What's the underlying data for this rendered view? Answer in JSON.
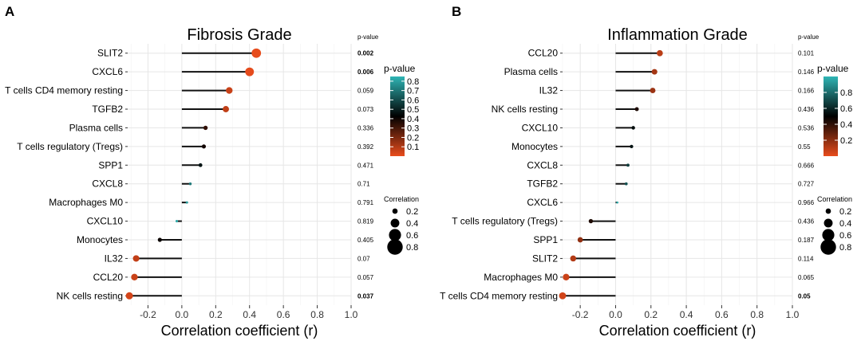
{
  "figure": {
    "panels": [
      {
        "letter": "A"
      },
      {
        "letter": "B"
      }
    ]
  },
  "legend": {
    "pvalue_title": "p-value",
    "correlation_title": "Correlation",
    "gradient_colors": [
      "#2fb5b5",
      "#000000",
      "#e84c1c"
    ],
    "size_labels": [
      "0.2",
      "0.4",
      "0.6",
      "0.8"
    ],
    "size_values": [
      0.2,
      0.4,
      0.6,
      0.8
    ]
  },
  "chart_data": [
    {
      "type": "lollipop",
      "title": "Fibrosis Grade",
      "xlabel": "Correlation coefficient (r)",
      "pvalue_header": "p-value",
      "xlim": [
        -0.32,
        1.0
      ],
      "xticks": [
        -0.2,
        0.0,
        0.2,
        0.4,
        0.6,
        0.8,
        1.0
      ],
      "xtick_labels": [
        "-0.2",
        "0.0",
        "0.2",
        "0.4",
        "0.6",
        "0.8",
        "1.0"
      ],
      "grid": true,
      "pvalue_range": [
        0.0,
        0.85
      ],
      "pvalue_legend_ticks": [
        0.8,
        0.7,
        0.6,
        0.5,
        0.4,
        0.3,
        0.2,
        0.1
      ],
      "pvalue_legend_labels": [
        "0.8",
        "0.7",
        "0.6",
        "0.5",
        "0.4",
        "0.3",
        "0.2",
        "0.1"
      ],
      "categories": [
        "SLIT2",
        "CXCL6",
        "T cells CD4 memory resting",
        "TGFB2",
        "Plasma cells",
        "T cells regulatory (Tregs)",
        "SPP1",
        "CXCL8",
        "Macrophages M0",
        "CXCL10",
        "Monocytes",
        "IL32",
        "CCL20",
        "NK cells resting"
      ],
      "values": [
        0.44,
        0.4,
        0.28,
        0.26,
        0.14,
        0.13,
        0.11,
        0.05,
        0.03,
        -0.03,
        -0.13,
        -0.27,
        -0.28,
        -0.31
      ],
      "pvalues": [
        0.002,
        0.006,
        0.059,
        0.073,
        0.336,
        0.392,
        0.471,
        0.71,
        0.791,
        0.819,
        0.405,
        0.07,
        0.057,
        0.037
      ],
      "pvalue_labels": [
        "0.002",
        "0.006",
        "0.059",
        "0.073",
        "0.336",
        "0.392",
        "0.471",
        "0.71",
        "0.791",
        "0.819",
        "0.405",
        "0.07",
        "0.057",
        "0.037"
      ],
      "significant": [
        true,
        true,
        false,
        false,
        false,
        false,
        false,
        false,
        false,
        false,
        false,
        false,
        false,
        true
      ]
    },
    {
      "type": "lollipop",
      "title": "Inflammation Grade",
      "xlabel": "Correlation coefficient (r)",
      "pvalue_header": "p-value",
      "xlim": [
        -0.3,
        1.0
      ],
      "xticks": [
        -0.2,
        0.0,
        0.2,
        0.4,
        0.6,
        0.8,
        1.0
      ],
      "xtick_labels": [
        "-0.2",
        "0.0",
        "0.2",
        "0.4",
        "0.6",
        "0.8",
        "1.0"
      ],
      "grid": true,
      "pvalue_range": [
        0.0,
        1.0
      ],
      "pvalue_legend_ticks": [
        0.8,
        0.6,
        0.4,
        0.2
      ],
      "pvalue_legend_labels": [
        "0.8",
        "0.6",
        "0.4",
        "0.2"
      ],
      "categories": [
        "CCL20",
        "Plasma cells",
        "IL32",
        "NK cells resting",
        "CXCL10",
        "Monocytes",
        "CXCL8",
        "TGFB2",
        "CXCL6",
        "T cells regulatory (Tregs)",
        "SPP1",
        "SLIT2",
        "Macrophages M0",
        "T cells CD4 memory resting"
      ],
      "values": [
        0.25,
        0.22,
        0.21,
        0.12,
        0.1,
        0.09,
        0.07,
        0.06,
        0.01,
        -0.14,
        -0.2,
        -0.24,
        -0.28,
        -0.3
      ],
      "pvalues": [
        0.101,
        0.146,
        0.166,
        0.436,
        0.536,
        0.55,
        0.666,
        0.727,
        0.966,
        0.436,
        0.187,
        0.114,
        0.065,
        0.05
      ],
      "pvalue_labels": [
        "0.101",
        "0.146",
        "0.166",
        "0.436",
        "0.536",
        "0.55",
        "0.666",
        "0.727",
        "0.966",
        "0.436",
        "0.187",
        "0.114",
        "0.065",
        "0.05"
      ],
      "significant": [
        false,
        false,
        false,
        false,
        false,
        false,
        false,
        false,
        false,
        false,
        false,
        false,
        false,
        true
      ]
    }
  ]
}
